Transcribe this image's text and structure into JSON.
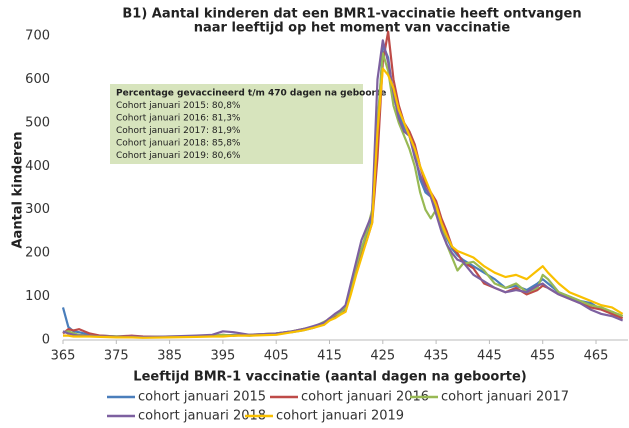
{
  "chart_data": {
    "type": "line",
    "title": [
      "B1) Aantal kinderen dat een BMR1-vaccinatie heeft ontvangen",
      "naar leeftijd op het moment van vaccinatie"
    ],
    "x_label": "Leeftijd BMR-1 vaccinatie (aantal dagen na geboorte)",
    "y_label": "Aantal kinderen",
    "annotation": [
      "Percentage gevaccineerd t/m 470 dagen na geboorte",
      "Cohort januari 2015: 80,8%",
      "Cohort januari 2016: 81,3%",
      "Cohort januari 2017: 81,9%",
      "Cohort januari 2018: 85,8%",
      "Cohort januari 2019: 80,6%"
    ],
    "xlim": [
      365,
      471
    ],
    "xticks": [
      365,
      375,
      385,
      395,
      405,
      415,
      425,
      435,
      445,
      455,
      465
    ],
    "ylim": [
      0,
      700
    ],
    "yticks": [
      0,
      100,
      200,
      300,
      400,
      500,
      600,
      700
    ],
    "grid": false,
    "legend": "bottom",
    "x": [
      365,
      366,
      367,
      368,
      370,
      372,
      375,
      378,
      380,
      385,
      390,
      393,
      395,
      397,
      400,
      405,
      408,
      410,
      412,
      414,
      415,
      416,
      417,
      418,
      419,
      420,
      421,
      422,
      423,
      424,
      425,
      426,
      427,
      428,
      429,
      430,
      431,
      432,
      433,
      434,
      435,
      436,
      437,
      438,
      439,
      440,
      442,
      444,
      446,
      448,
      450,
      452,
      454,
      455,
      456,
      458,
      460,
      462,
      464,
      466,
      468,
      470
    ],
    "series": [
      {
        "name": "cohort januari 2015",
        "color": "#4a7ebb",
        "values": [
          75,
          30,
          20,
          18,
          12,
          10,
          8,
          8,
          6,
          7,
          8,
          10,
          10,
          12,
          10,
          15,
          18,
          22,
          28,
          38,
          45,
          55,
          62,
          70,
          115,
          165,
          205,
          245,
          280,
          470,
          680,
          650,
          560,
          520,
          490,
          470,
          430,
          370,
          340,
          330,
          300,
          260,
          235,
          210,
          195,
          185,
          170,
          155,
          140,
          120,
          125,
          115,
          130,
          140,
          130,
          110,
          100,
          90,
          85,
          70,
          65,
          55
        ]
      },
      {
        "name": "cohort januari 2016",
        "color": "#be4b48",
        "values": [
          15,
          25,
          22,
          25,
          15,
          10,
          8,
          10,
          8,
          7,
          8,
          10,
          12,
          10,
          12,
          15,
          20,
          25,
          30,
          40,
          50,
          55,
          60,
          65,
          110,
          155,
          195,
          230,
          270,
          420,
          640,
          710,
          600,
          540,
          500,
          480,
          450,
          400,
          360,
          340,
          320,
          280,
          250,
          215,
          200,
          180,
          165,
          130,
          120,
          110,
          120,
          105,
          115,
          125,
          120,
          105,
          95,
          85,
          75,
          70,
          60,
          50
        ]
      },
      {
        "name": "cohort januari 2017",
        "color": "#98b954",
        "values": [
          18,
          20,
          15,
          12,
          10,
          8,
          8,
          7,
          6,
          8,
          8,
          10,
          12,
          10,
          12,
          15,
          20,
          25,
          30,
          42,
          48,
          58,
          62,
          75,
          120,
          170,
          210,
          250,
          300,
          500,
          660,
          620,
          540,
          500,
          470,
          440,
          400,
          340,
          300,
          280,
          300,
          260,
          220,
          190,
          160,
          175,
          180,
          160,
          130,
          120,
          130,
          110,
          120,
          150,
          140,
          110,
          100,
          90,
          80,
          75,
          65,
          55
        ]
      },
      {
        "name": "cohort januari 2018",
        "color": "#7d60a0",
        "values": [
          20,
          15,
          12,
          10,
          10,
          8,
          7,
          8,
          7,
          8,
          10,
          12,
          20,
          18,
          12,
          15,
          20,
          25,
          32,
          40,
          50,
          60,
          68,
          80,
          130,
          180,
          230,
          260,
          290,
          600,
          690,
          640,
          570,
          510,
          480,
          470,
          420,
          380,
          350,
          330,
          290,
          250,
          220,
          200,
          185,
          180,
          150,
          135,
          120,
          110,
          115,
          110,
          125,
          130,
          120,
          105,
          95,
          85,
          70,
          60,
          55,
          45
        ]
      },
      {
        "name": "cohort januari 2019",
        "color": "#f9c000",
        "values": [
          10,
          10,
          8,
          8,
          8,
          7,
          6,
          6,
          5,
          6,
          7,
          8,
          8,
          10,
          10,
          12,
          18,
          22,
          28,
          35,
          45,
          50,
          58,
          65,
          105,
          150,
          190,
          230,
          270,
          480,
          625,
          610,
          580,
          530,
          500,
          470,
          440,
          400,
          370,
          340,
          310,
          270,
          240,
          215,
          205,
          200,
          190,
          170,
          155,
          145,
          150,
          140,
          160,
          170,
          155,
          130,
          110,
          100,
          90,
          80,
          75,
          60
        ]
      }
    ]
  }
}
